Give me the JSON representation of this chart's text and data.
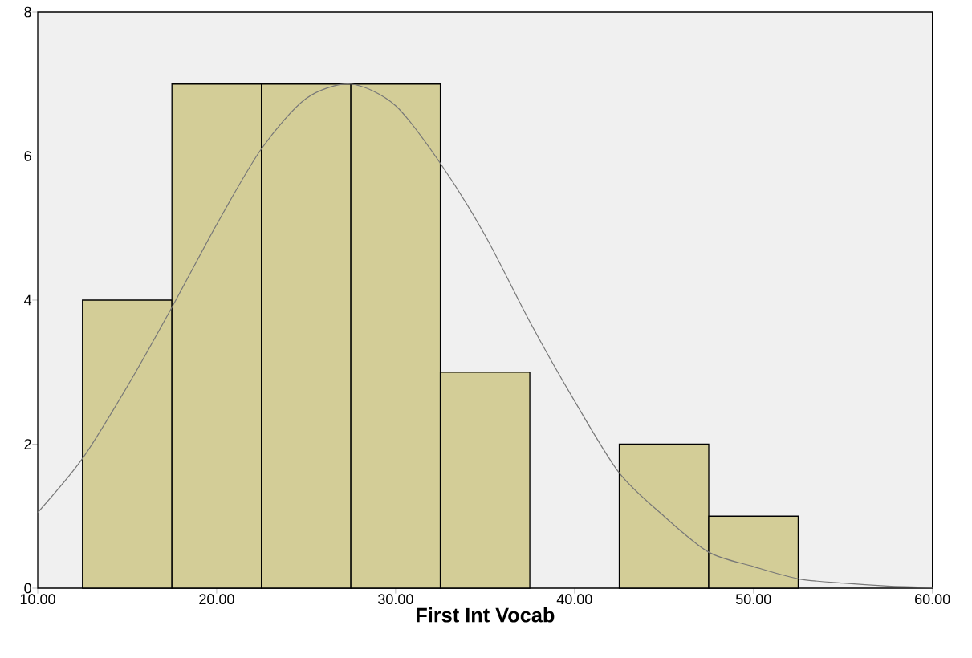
{
  "chart_data": {
    "type": "histogram",
    "xlabel": "First Int Vocab",
    "bins": [
      12.5,
      17.5,
      22.5,
      27.5,
      32.5,
      37.5,
      42.5,
      47.5,
      52.5
    ],
    "values": [
      4,
      7,
      7,
      7,
      3,
      0,
      2,
      1
    ],
    "color": "#d3cd97",
    "series": [
      {
        "type": "line",
        "color": "#777777",
        "x": [
          10,
          12.5,
          15,
          17.5,
          20,
          22.5,
          25,
          27.5,
          30,
          32.5,
          35,
          37.5,
          40,
          42.5,
          45,
          47.5,
          50,
          52.5,
          55,
          57.5,
          60
        ],
        "values": [
          1.05,
          1.8,
          2.8,
          3.9,
          5.05,
          6.1,
          6.8,
          7.0,
          6.7,
          5.9,
          4.9,
          3.7,
          2.6,
          1.6,
          1.0,
          0.5,
          0.3,
          0.13,
          0.07,
          0.03,
          0.01
        ]
      }
    ],
    "xlim": [
      10,
      60
    ],
    "ylim": [
      0,
      8
    ],
    "xticks": [
      {
        "value": 10,
        "label": "10.00"
      },
      {
        "value": 20,
        "label": "20.00"
      },
      {
        "value": 30,
        "label": "30.00"
      },
      {
        "value": 40,
        "label": "40.00"
      },
      {
        "value": 50,
        "label": "50.00"
      },
      {
        "value": 60,
        "label": "60.00"
      }
    ],
    "yticks": [
      0,
      2,
      4,
      6,
      8
    ],
    "grid": false,
    "marker": "none",
    "line_style": "solid"
  }
}
